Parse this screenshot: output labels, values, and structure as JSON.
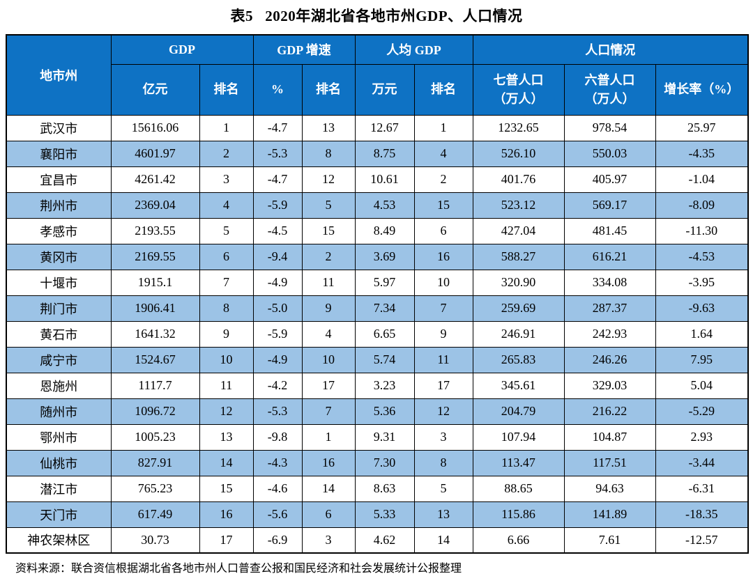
{
  "title": "表5   2020年湖北省各地市州GDP、人口情况",
  "colors": {
    "header_bg": "#0E72C4",
    "stripe_bg": "#9CC3E6",
    "border": "#000000",
    "header_text": "#FFFFFF"
  },
  "table": {
    "header": {
      "region_col": "地市州",
      "groups": [
        {
          "label": "GDP",
          "span": 2
        },
        {
          "label": "GDP 增速",
          "span": 2
        },
        {
          "label": "人均 GDP",
          "span": 2
        },
        {
          "label": "人口情况",
          "span": 3
        }
      ],
      "subs": [
        "亿元",
        "排名",
        "%",
        "排名",
        "万元",
        "排名",
        "七普人口\n（万人）",
        "六普人口\n（万人）",
        "增长率（%）"
      ]
    },
    "rows": [
      {
        "region": "武汉市",
        "values": [
          "15616.06",
          "1",
          "-4.7",
          "13",
          "12.67",
          "1",
          "1232.65",
          "978.54",
          "25.97"
        ]
      },
      {
        "region": "襄阳市",
        "values": [
          "4601.97",
          "2",
          "-5.3",
          "8",
          "8.75",
          "4",
          "526.10",
          "550.03",
          "-4.35"
        ]
      },
      {
        "region": "宜昌市",
        "values": [
          "4261.42",
          "3",
          "-4.7",
          "12",
          "10.61",
          "2",
          "401.76",
          "405.97",
          "-1.04"
        ]
      },
      {
        "region": "荆州市",
        "values": [
          "2369.04",
          "4",
          "-5.9",
          "5",
          "4.53",
          "15",
          "523.12",
          "569.17",
          "-8.09"
        ]
      },
      {
        "region": "孝感市",
        "values": [
          "2193.55",
          "5",
          "-4.5",
          "15",
          "8.49",
          "6",
          "427.04",
          "481.45",
          "-11.30"
        ]
      },
      {
        "region": "黄冈市",
        "values": [
          "2169.55",
          "6",
          "-9.4",
          "2",
          "3.69",
          "16",
          "588.27",
          "616.21",
          "-4.53"
        ]
      },
      {
        "region": "十堰市",
        "values": [
          "1915.1",
          "7",
          "-4.9",
          "11",
          "5.97",
          "10",
          "320.90",
          "334.08",
          "-3.95"
        ]
      },
      {
        "region": "荆门市",
        "values": [
          "1906.41",
          "8",
          "-5.0",
          "9",
          "7.34",
          "7",
          "259.69",
          "287.37",
          "-9.63"
        ]
      },
      {
        "region": "黄石市",
        "values": [
          "1641.32",
          "9",
          "-5.9",
          "4",
          "6.65",
          "9",
          "246.91",
          "242.93",
          "1.64"
        ]
      },
      {
        "region": "咸宁市",
        "values": [
          "1524.67",
          "10",
          "-4.9",
          "10",
          "5.74",
          "11",
          "265.83",
          "246.26",
          "7.95"
        ]
      },
      {
        "region": "恩施州",
        "values": [
          "1117.7",
          "11",
          "-4.2",
          "17",
          "3.23",
          "17",
          "345.61",
          "329.03",
          "5.04"
        ]
      },
      {
        "region": "随州市",
        "values": [
          "1096.72",
          "12",
          "-5.3",
          "7",
          "5.36",
          "12",
          "204.79",
          "216.22",
          "-5.29"
        ]
      },
      {
        "region": "鄂州市",
        "values": [
          "1005.23",
          "13",
          "-9.8",
          "1",
          "9.31",
          "3",
          "107.94",
          "104.87",
          "2.93"
        ]
      },
      {
        "region": "仙桃市",
        "values": [
          "827.91",
          "14",
          "-4.3",
          "16",
          "7.30",
          "8",
          "113.47",
          "117.51",
          "-3.44"
        ]
      },
      {
        "region": "潜江市",
        "values": [
          "765.23",
          "15",
          "-4.6",
          "14",
          "8.63",
          "5",
          "88.65",
          "94.63",
          "-6.31"
        ]
      },
      {
        "region": "天门市",
        "values": [
          "617.49",
          "16",
          "-5.6",
          "6",
          "5.33",
          "13",
          "115.86",
          "141.89",
          "-18.35"
        ]
      },
      {
        "region": "神农架林区",
        "values": [
          "30.73",
          "17",
          "-6.9",
          "3",
          "4.62",
          "14",
          "6.66",
          "7.61",
          "-12.57"
        ]
      }
    ]
  },
  "source_note": "资料来源：联合资信根据湖北省各地市州人口普查公报和国民经济和社会发展统计公报整理"
}
